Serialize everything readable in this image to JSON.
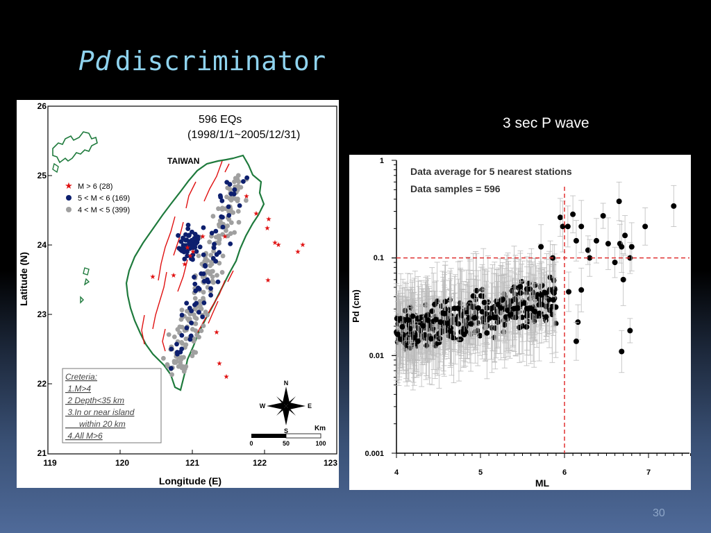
{
  "slide": {
    "title_italic": "Pd",
    "title_rest": "discriminator",
    "caption": "3 sec P wave",
    "page_number": "30"
  },
  "map": {
    "header_line1": "596 EQs",
    "header_line2": "(1998/1/1~2005/12/31)",
    "island_label": "TAIWAN",
    "legend": [
      {
        "label": "M > 6 (28)",
        "marker": "star",
        "color": "#e01010"
      },
      {
        "label": "5 < M < 6 (169)",
        "marker": "circle",
        "color": "#0d1f6e"
      },
      {
        "label": "4 < M < 5 (399)",
        "marker": "circle",
        "color": "#a0a0a0"
      }
    ],
    "criteria": {
      "title": "Creteria:",
      "items": [
        " 1.M>4",
        " 2 Depth<35 km",
        " 3.In or near island",
        "      within 20 km",
        " 4.All M>6"
      ]
    },
    "compass": {
      "n": "N",
      "e": "E",
      "s": "S",
      "w": "W"
    },
    "scale": {
      "unit": "Km",
      "ticks": [
        "0",
        "50",
        "100"
      ]
    },
    "xlabel": "Longitude (E)",
    "ylabel": "Latitude (N)",
    "xticks": [
      "119",
      "120",
      "121",
      "122",
      "123"
    ],
    "yticks": [
      "26",
      "25",
      "24",
      "23",
      "22",
      "21"
    ],
    "xlim": [
      119,
      123
    ],
    "ylim": [
      21,
      26
    ],
    "colors": {
      "coast": "#1e7a3c",
      "fault": "#e01010",
      "large": "#e01010",
      "mid": "#0d1f6e",
      "small": "#a0a0a0"
    }
  },
  "chart_data": {
    "type": "scatter",
    "title": "Data average for 5 nearest stations",
    "subtitle": "Data samples = 596",
    "xlabel": "ML",
    "ylabel": "Pd (cm)",
    "xlim": [
      4,
      7.5
    ],
    "ylim": [
      0.001,
      1
    ],
    "yscale": "log",
    "xticks": [
      "4",
      "5",
      "6",
      "7"
    ],
    "yticks": [
      "1",
      "0.1",
      "0.01",
      "0.001"
    ],
    "thresholds": {
      "x": 6,
      "y": 0.1,
      "color": "#e03030"
    },
    "large_events": [
      {
        "x": 5.95,
        "y": 0.26
      },
      {
        "x": 5.98,
        "y": 0.21
      },
      {
        "x": 6.04,
        "y": 0.21
      },
      {
        "x": 6.1,
        "y": 0.28
      },
      {
        "x": 6.14,
        "y": 0.15
      },
      {
        "x": 6.2,
        "y": 0.21
      },
      {
        "x": 6.28,
        "y": 0.12
      },
      {
        "x": 6.3,
        "y": 0.1
      },
      {
        "x": 6.38,
        "y": 0.15
      },
      {
        "x": 6.46,
        "y": 0.27
      },
      {
        "x": 6.52,
        "y": 0.14
      },
      {
        "x": 6.6,
        "y": 0.09
      },
      {
        "x": 6.65,
        "y": 0.38
      },
      {
        "x": 6.66,
        "y": 0.14
      },
      {
        "x": 6.68,
        "y": 0.13
      },
      {
        "x": 6.7,
        "y": 0.06
      },
      {
        "x": 6.72,
        "y": 0.17
      },
      {
        "x": 6.78,
        "y": 0.1
      },
      {
        "x": 6.8,
        "y": 0.13
      },
      {
        "x": 6.96,
        "y": 0.21
      },
      {
        "x": 7.3,
        "y": 0.34
      },
      {
        "x": 6.05,
        "y": 0.045
      },
      {
        "x": 6.2,
        "y": 0.047
      },
      {
        "x": 6.16,
        "y": 0.022
      },
      {
        "x": 6.14,
        "y": 0.014
      },
      {
        "x": 6.68,
        "y": 0.011
      },
      {
        "x": 6.78,
        "y": 0.018
      },
      {
        "x": 5.86,
        "y": 0.1
      },
      {
        "x": 5.72,
        "y": 0.13
      }
    ],
    "small_events_note": "dense cloud of M4-6 events, Pd mostly 0.005-0.05 cm"
  }
}
